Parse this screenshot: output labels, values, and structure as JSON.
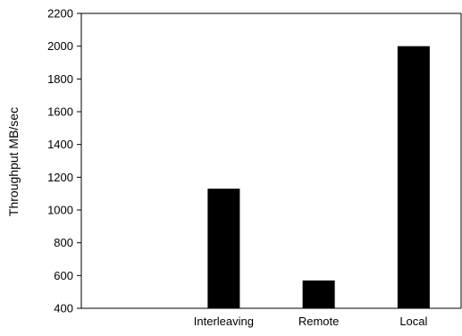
{
  "chart_data": {
    "type": "bar",
    "title": "",
    "xlabel": "",
    "ylabel": "Throughput MB/sec",
    "categories": [
      "",
      "Interleaving",
      "Remote",
      "Local"
    ],
    "values": [
      null,
      1130,
      570,
      2000
    ],
    "ylim": [
      400,
      2200
    ],
    "yticks": [
      400,
      600,
      800,
      1000,
      1200,
      1400,
      1600,
      1800,
      2000,
      2200
    ],
    "grid": false,
    "legend": "none",
    "bar_color": "#000000"
  }
}
